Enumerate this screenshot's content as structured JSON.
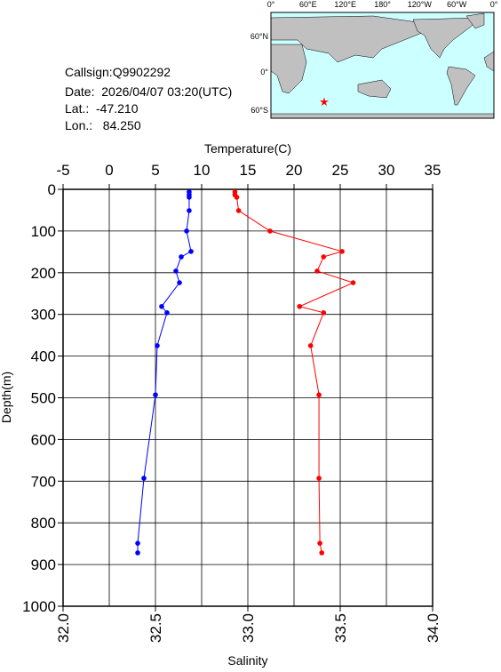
{
  "info": {
    "callsign": "Callsign:Q9902292",
    "date": "Date:  2026/04/07 03:20(UTC)",
    "lat": "Lat.:  -47.210",
    "lon": "Lon.:   84.250"
  },
  "map": {
    "lon_labels": [
      "0°",
      "60°E",
      "120°E",
      "180°",
      "120°W",
      "60°W",
      "0°"
    ],
    "lat_labels": [
      "60°N",
      "0°",
      "60°S"
    ]
  },
  "chart_data": {
    "type": "profile",
    "x_label": "Temperature(C)",
    "x2_label": "Salinity",
    "y_label": "Depth(m)",
    "xlim": [
      -5,
      35
    ],
    "xticks": [
      -5,
      0,
      5,
      10,
      15,
      20,
      25,
      30,
      35
    ],
    "x2lim": [
      32,
      34
    ],
    "x2ticks": [
      {
        "value": 32,
        "label": "32.0"
      },
      32.5,
      {
        "value": 33,
        "label": "33.0"
      },
      33.5,
      {
        "value": 34,
        "label": "34.0"
      }
    ],
    "ylim": [
      0,
      1000
    ],
    "y_inverted": true,
    "yticks": [
      0,
      100,
      200,
      300,
      400,
      500,
      600,
      700,
      800,
      900,
      1000
    ],
    "grid": true,
    "depth": [
      6,
      13,
      19,
      51,
      100,
      149,
      162,
      196,
      224,
      281,
      296,
      375,
      493,
      693,
      849,
      872
    ],
    "series": [
      {
        "name": "Temperature",
        "color": "#0000ff",
        "axis": "x",
        "values": [
          8.65,
          8.65,
          8.65,
          8.65,
          8.37,
          8.85,
          7.79,
          7.21,
          7.6,
          5.67,
          6.25,
          5.19,
          5.0,
          3.75,
          3.08,
          3.08
        ]
      },
      {
        "name": "Salinity",
        "color": "#ff0000",
        "axis": "x2",
        "values": [
          32.93,
          32.93,
          32.94,
          32.95,
          33.12,
          33.51,
          33.41,
          33.375,
          33.57,
          33.28,
          33.41,
          33.34,
          33.385,
          33.385,
          33.39,
          33.4
        ]
      }
    ]
  }
}
